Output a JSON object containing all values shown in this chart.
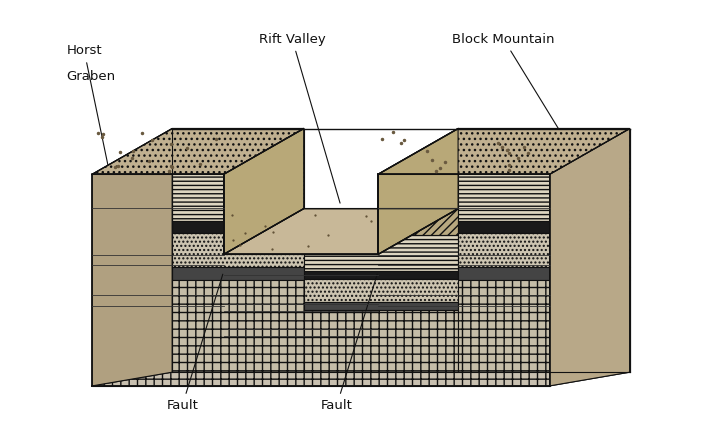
{
  "background_color": "#ffffff",
  "figure_width": 7.16,
  "figure_height": 4.23,
  "dpi": 100,
  "title": "",
  "labels": {
    "horst": "Horst",
    "graben_label": "Graben",
    "rift_valley": "Rift Valley",
    "block_mountain": "Block Mountain",
    "fault1": "Fault",
    "fault2": "Fault"
  },
  "colors": {
    "top_surface": "#c8b89a",
    "side_face_light": "#d4c4a8",
    "layer_stripe1": "#e8dcc8",
    "layer_stripe2": "#f0e8d8",
    "layer_dark": "#3a3a3a",
    "layer_granite": "#e0d8c8",
    "fault_line": "#222222",
    "outline": "#111111",
    "cross_layer": "#d8d0c0",
    "white": "#ffffff",
    "granite_plus": "#d5cdc0"
  }
}
